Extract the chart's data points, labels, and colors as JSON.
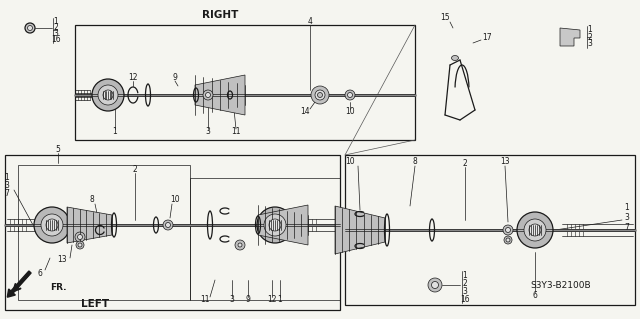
{
  "bg_color": "#f5f5f0",
  "line_color": "#1a1a1a",
  "diagram_code": "S3Y3-B2100B",
  "right_label": "RIGHT",
  "left_label": "LEFT",
  "fr_label": "FR.",
  "figsize": [
    6.4,
    3.19
  ],
  "dpi": 100,
  "label_fontsize": 5.5,
  "title_fontsize": 7.5
}
